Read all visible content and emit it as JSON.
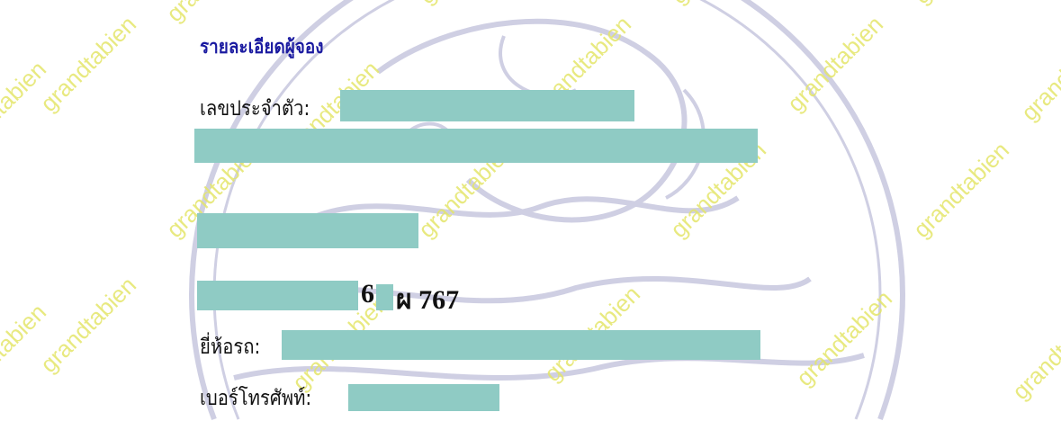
{
  "watermark": "grandtabien",
  "heading": "รายละเอียดผู้จอง",
  "fields": {
    "id_label": "เลขประจำตัว:",
    "brand_label": "ยี่ห้อรถ:",
    "phone_label": "เบอร์โทรศัพท์:"
  },
  "plate": {
    "digit": "6",
    "rest": "ผ 767"
  },
  "colors": {
    "heading": "#1a1aa0",
    "redaction": "#8fcbc4",
    "watermark": "#e4e66a",
    "seal": "#c9c9e0"
  }
}
